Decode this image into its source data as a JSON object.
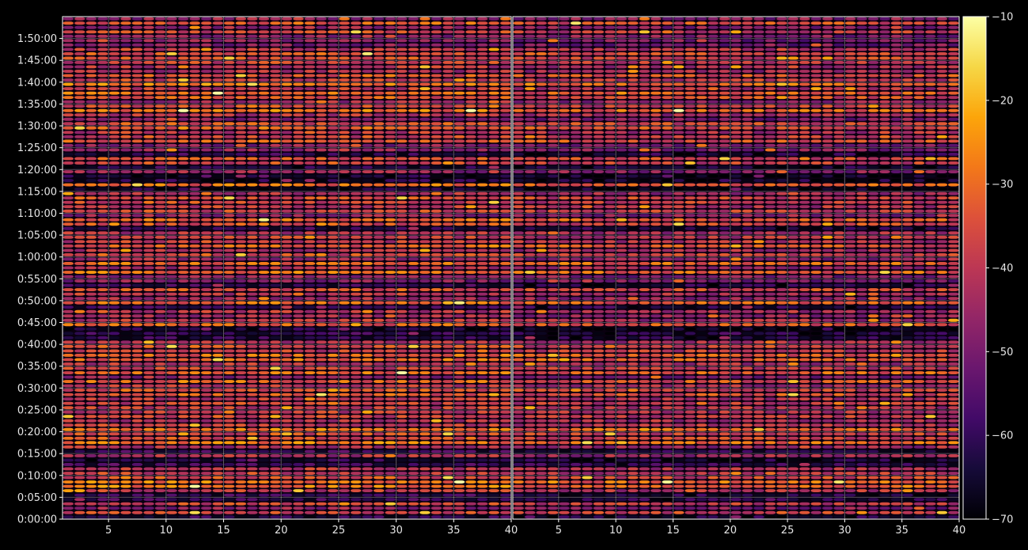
{
  "chart_data": {
    "type": "heatmap",
    "title": "",
    "xlabel": "",
    "ylabel": "",
    "colormap": "inferno",
    "background": "#000000",
    "grid": true,
    "panels": [
      {
        "xlim": [
          1,
          40
        ],
        "x_ticks": [
          5,
          10,
          15,
          20,
          25,
          30,
          35,
          40
        ],
        "x_tick_labels": [
          "5",
          "10",
          "15",
          "20",
          "25",
          "30",
          "35",
          "40"
        ]
      },
      {
        "xlim": [
          1,
          40
        ],
        "x_ticks": [
          5,
          10,
          15,
          20,
          25,
          30,
          35,
          40
        ],
        "x_tick_labels": [
          "5",
          "10",
          "15",
          "20",
          "25",
          "30",
          "35",
          "40"
        ]
      }
    ],
    "y_range_seconds": [
      0,
      6900
    ],
    "y_ticks": [
      0,
      300,
      600,
      900,
      1200,
      1500,
      1800,
      2100,
      2400,
      2700,
      3000,
      3300,
      3600,
      3900,
      4200,
      4500,
      4800,
      5100,
      5400,
      5700,
      6000,
      6300,
      6600
    ],
    "y_tick_labels": [
      "0:00:00",
      "0:05:00",
      "0:10:00",
      "0:15:00",
      "0:20:00",
      "0:25:00",
      "0:30:00",
      "0:35:00",
      "0:40:00",
      "0:45:00",
      "0:50:00",
      "0:55:00",
      "1:00:00",
      "1:05:00",
      "1:10:00",
      "1:15:00",
      "1:20:00",
      "1:25:00",
      "1:30:00",
      "1:35:00",
      "1:40:00",
      "1:45:00",
      "1:50:00"
    ],
    "colorbar": {
      "range": [
        -70,
        -10
      ],
      "ticks": [
        -70,
        -60,
        -50,
        -40,
        -30,
        -20,
        -10
      ],
      "tick_labels": [
        "−70",
        "−60",
        "−50",
        "−40",
        "−30",
        "−20",
        "−10"
      ]
    }
  }
}
